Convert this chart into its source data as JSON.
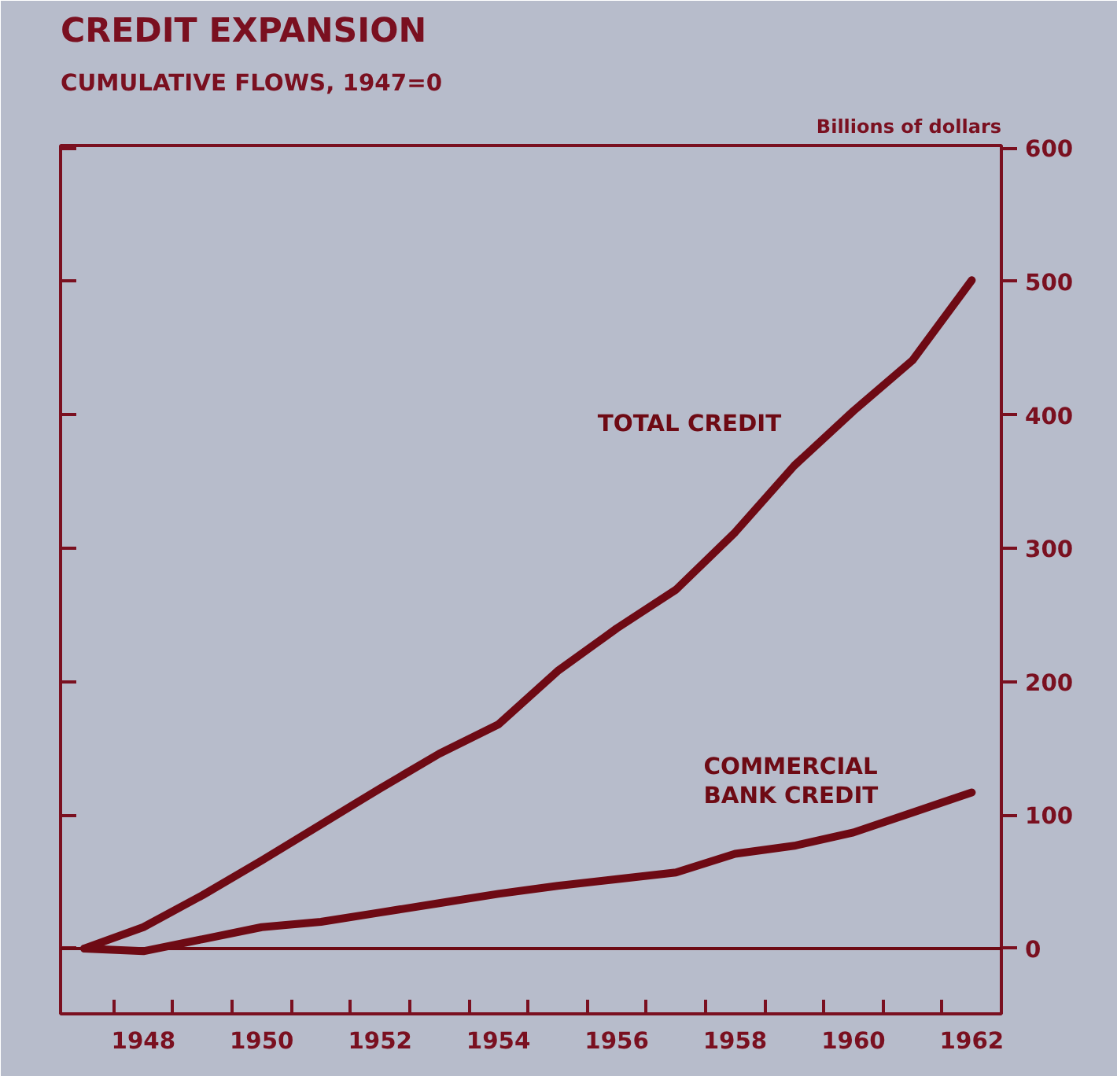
{
  "chart_data": {
    "type": "line",
    "title": "CREDIT EXPANSION",
    "subtitle": "CUMULATIVE FLOWS, 1947=0",
    "ylabel": "Billions of dollars",
    "x": [
      1947,
      1948,
      1949,
      1950,
      1951,
      1952,
      1953,
      1954,
      1955,
      1956,
      1957,
      1958,
      1959,
      1960,
      1961,
      1962
    ],
    "series": [
      {
        "name": "TOTAL CREDIT",
        "color": "#6e0a14",
        "values": [
          0,
          16,
          40,
          66,
          93,
          120,
          146,
          168,
          208,
          240,
          269,
          312,
          362,
          403,
          441,
          501
        ]
      },
      {
        "name": "COMMERCIAL BANK CREDIT",
        "color": "#6e0a14",
        "values": [
          0,
          -2,
          7,
          16,
          20,
          27,
          34,
          41,
          47,
          52,
          57,
          71,
          77,
          87,
          102,
          117
        ]
      }
    ],
    "xlim": [
      1946.6,
      1962.5
    ],
    "ylim": [
      -49,
      602
    ],
    "xticks": [
      {
        "value": 1947.5,
        "label": null
      },
      {
        "value": 1948,
        "label": "1948"
      },
      {
        "value": 1948.5,
        "label": null
      },
      {
        "value": 1949.5,
        "label": null
      },
      {
        "value": 1950,
        "label": "1950"
      },
      {
        "value": 1950.5,
        "label": null
      },
      {
        "value": 1951.5,
        "label": null
      },
      {
        "value": 1952,
        "label": "1952"
      },
      {
        "value": 1952.5,
        "label": null
      },
      {
        "value": 1953.5,
        "label": null
      },
      {
        "value": 1954,
        "label": "1954"
      },
      {
        "value": 1954.5,
        "label": null
      },
      {
        "value": 1955.5,
        "label": null
      },
      {
        "value": 1956,
        "label": "1956"
      },
      {
        "value": 1956.5,
        "label": null
      },
      {
        "value": 1957.5,
        "label": null
      },
      {
        "value": 1958,
        "label": "1958"
      },
      {
        "value": 1958.5,
        "label": null
      },
      {
        "value": 1959.5,
        "label": null
      },
      {
        "value": 1960,
        "label": "1960"
      },
      {
        "value": 1960.5,
        "label": null
      },
      {
        "value": 1961.5,
        "label": null
      },
      {
        "value": 1962,
        "label": "1962"
      }
    ],
    "yticks": [
      0,
      100,
      200,
      300,
      400,
      500,
      600
    ],
    "ref_lines": [
      {
        "axis": "y",
        "value": 0,
        "color": "#6e0a14"
      }
    ],
    "grid": false,
    "line_style": "solid",
    "marker": "none"
  }
}
